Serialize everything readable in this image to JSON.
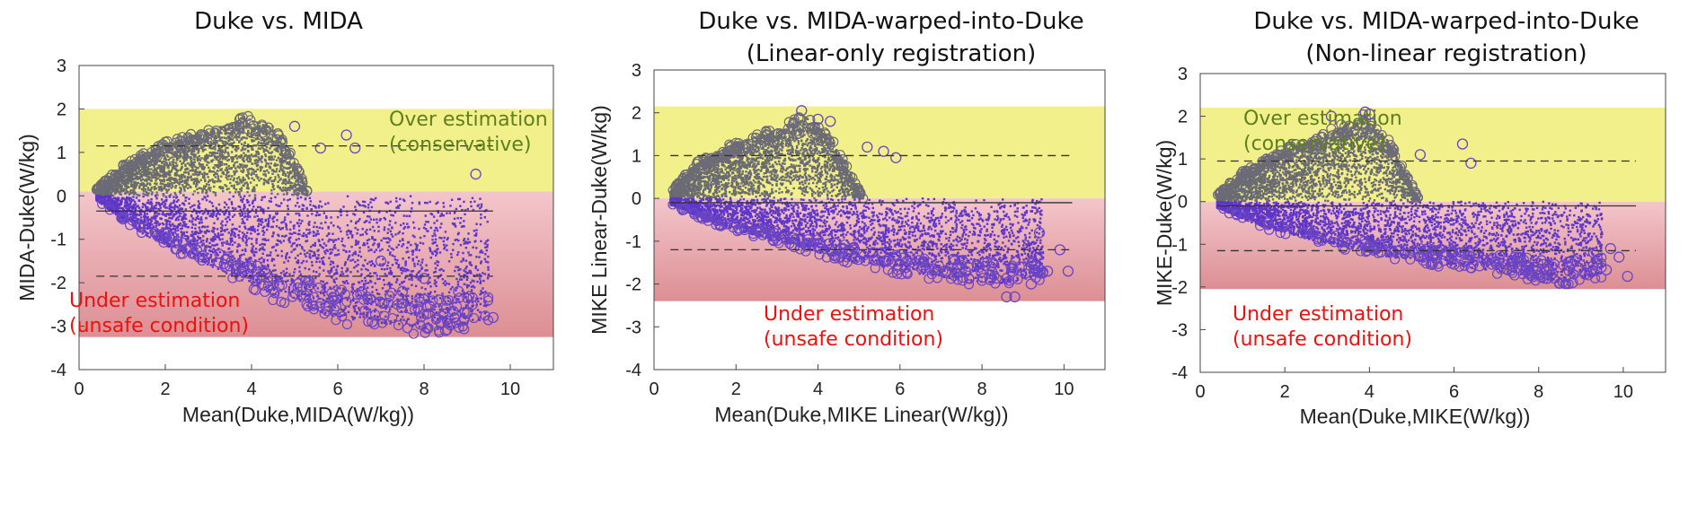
{
  "chart_data": [
    {
      "type": "scatter",
      "title_lines": [
        "Duke vs. MIDA"
      ],
      "xlabel": "Mean(Duke,MIDA(W/kg))",
      "ylabel": "MIDA-Duke(W/kg)",
      "xlim": [
        0,
        11
      ],
      "ylim": [
        -4,
        3
      ],
      "xticks": [
        "0",
        "2",
        "4",
        "6",
        "8",
        "10"
      ],
      "yticks": [
        "-4",
        "-3",
        "-2",
        "-1",
        "0",
        "1",
        "2",
        "3"
      ],
      "over_region": [
        0.1,
        2.0
      ],
      "under_region": [
        -3.25,
        0.1
      ],
      "over_label": [
        "Over estimation",
        "(conservative)"
      ],
      "under_label": [
        "Under estimation",
        "(unsafe condition)"
      ],
      "bias": -0.35,
      "upper_loa": 1.15,
      "lower_loa": -1.85,
      "fit_x": [
        0.4,
        9.6
      ],
      "cloud_upper_top": [
        [
          0.4,
          0.15
        ],
        [
          1,
          0.7
        ],
        [
          2,
          1.2
        ],
        [
          3,
          1.5
        ],
        [
          3.8,
          1.8
        ],
        [
          4.5,
          1.6
        ],
        [
          5,
          0.8
        ],
        [
          5.3,
          0.1
        ]
      ],
      "cloud_lower_bottom": [
        [
          0.4,
          -0.1
        ],
        [
          1.5,
          -0.9
        ],
        [
          3,
          -1.6
        ],
        [
          4.5,
          -2.3
        ],
        [
          6,
          -2.8
        ],
        [
          7.5,
          -3.0
        ],
        [
          8.5,
          -3.1
        ],
        [
          9.5,
          -2.8
        ]
      ],
      "outliers": [
        [
          9.2,
          0.5
        ],
        [
          6.2,
          1.4
        ],
        [
          6.4,
          1.1
        ],
        [
          7,
          -1.5
        ],
        [
          7.5,
          -2.2
        ],
        [
          8,
          -1.9
        ],
        [
          8.3,
          -2.6
        ],
        [
          8.8,
          -2.2
        ],
        [
          9,
          -2.7
        ],
        [
          9.6,
          -2.8
        ],
        [
          8.5,
          -3.1
        ],
        [
          7.7,
          -2.6
        ],
        [
          6.8,
          -2.9
        ],
        [
          5.6,
          1.1
        ],
        [
          5,
          1.6
        ]
      ]
    },
    {
      "type": "scatter",
      "title_lines": [
        "Duke vs. MIDA-warped-into-Duke",
        "(Linear-only registration)"
      ],
      "xlabel": "Mean(Duke,MIKE Linear(W/kg))",
      "ylabel": "MIKE Linear-Duke(W/kg)",
      "xlim": [
        0,
        11
      ],
      "ylim": [
        -4,
        3
      ],
      "xticks": [
        "0",
        "2",
        "4",
        "6",
        "8",
        "10"
      ],
      "yticks": [
        "-4",
        "-3",
        "-2",
        "-1",
        "0",
        "1",
        "2",
        "3"
      ],
      "over_region": [
        0.0,
        2.15
      ],
      "under_region": [
        -2.4,
        0.0
      ],
      "over_label": [
        "",
        ""
      ],
      "under_label": [
        "Under estimation",
        "(unsafe condition)"
      ],
      "bias": -0.1,
      "upper_loa": 1.0,
      "lower_loa": -1.2,
      "fit_x": [
        0.4,
        10.2
      ],
      "cloud_upper_top": [
        [
          0.4,
          0.15
        ],
        [
          1,
          0.8
        ],
        [
          2,
          1.3
        ],
        [
          3,
          1.6
        ],
        [
          3.7,
          1.9
        ],
        [
          4.3,
          1.4
        ],
        [
          4.8,
          0.6
        ],
        [
          5.1,
          0.0
        ]
      ],
      "cloud_lower_bottom": [
        [
          0.4,
          -0.15
        ],
        [
          1.5,
          -0.6
        ],
        [
          3,
          -1.0
        ],
        [
          4.5,
          -1.4
        ],
        [
          6,
          -1.7
        ],
        [
          7.5,
          -1.9
        ],
        [
          8.5,
          -2.0
        ],
        [
          9.5,
          -1.8
        ]
      ],
      "outliers": [
        [
          3.6,
          2.05
        ],
        [
          4.0,
          1.85
        ],
        [
          4.3,
          1.8
        ],
        [
          5.2,
          1.2
        ],
        [
          5.6,
          1.1
        ],
        [
          5.9,
          0.95
        ],
        [
          8.6,
          -2.3
        ],
        [
          8.8,
          -2.3
        ],
        [
          9.2,
          -2.0
        ],
        [
          9.6,
          -1.7
        ],
        [
          10.1,
          -1.7
        ],
        [
          9.9,
          -1.2
        ],
        [
          8.2,
          -1.9
        ],
        [
          7.6,
          -1.7
        ],
        [
          9.4,
          -0.8
        ]
      ]
    },
    {
      "type": "scatter",
      "title_lines": [
        "Duke vs. MIDA-warped-into-Duke",
        "(Non-linear registration)"
      ],
      "xlabel": "Mean(Duke,MIKE(W/kg))",
      "ylabel": "MIKE-Duke(W/kg)",
      "xlim": [
        0,
        11
      ],
      "ylim": [
        -4,
        3
      ],
      "xticks": [
        "0",
        "2",
        "4",
        "6",
        "8",
        "10"
      ],
      "yticks": [
        "-4",
        "-3",
        "-2",
        "-1",
        "0",
        "1",
        "2",
        "3"
      ],
      "over_region": [
        0.0,
        2.2
      ],
      "under_region": [
        -2.05,
        0.0
      ],
      "over_label": [
        "Over estimation",
        "(conservative)"
      ],
      "under_label": [
        "Under estimation",
        "(unsafe condition)"
      ],
      "bias": -0.1,
      "upper_loa": 0.95,
      "lower_loa": -1.15,
      "fit_x": [
        0.4,
        10.3
      ],
      "cloud_upper_top": [
        [
          0.4,
          0.15
        ],
        [
          1,
          0.7
        ],
        [
          2,
          1.2
        ],
        [
          3,
          1.6
        ],
        [
          3.9,
          2.0
        ],
        [
          4.4,
          1.5
        ],
        [
          4.9,
          0.6
        ],
        [
          5.2,
          0.0
        ]
      ],
      "cloud_lower_bottom": [
        [
          0.4,
          -0.15
        ],
        [
          1.5,
          -0.6
        ],
        [
          3,
          -1.0
        ],
        [
          4.5,
          -1.3
        ],
        [
          6,
          -1.5
        ],
        [
          7.5,
          -1.7
        ],
        [
          8.5,
          -1.9
        ],
        [
          9.5,
          -1.7
        ]
      ],
      "outliers": [
        [
          3.1,
          2.0
        ],
        [
          3.9,
          2.1
        ],
        [
          4.0,
          2.05
        ],
        [
          5.2,
          1.1
        ],
        [
          6.2,
          1.35
        ],
        [
          6.4,
          0.9
        ],
        [
          8.8,
          -1.9
        ],
        [
          9.1,
          -1.7
        ],
        [
          9.6,
          -1.6
        ],
        [
          10.1,
          -1.75
        ],
        [
          9.9,
          -1.3
        ],
        [
          8.2,
          -1.8
        ],
        [
          7.5,
          -1.4
        ],
        [
          9.3,
          -1.2
        ],
        [
          9.7,
          -1.1
        ]
      ]
    }
  ],
  "colors": {
    "over_region": "#f2f08a",
    "under_top": "#f3c6cb",
    "under_bottom": "#dc8f94",
    "positive_points": "#6a6a72",
    "negative_points": "#5e36c8",
    "outlier_ring": "#6a45c4",
    "over_text": "#5d7f1f",
    "under_text": "#ee1010",
    "loa_line": "#333333"
  }
}
